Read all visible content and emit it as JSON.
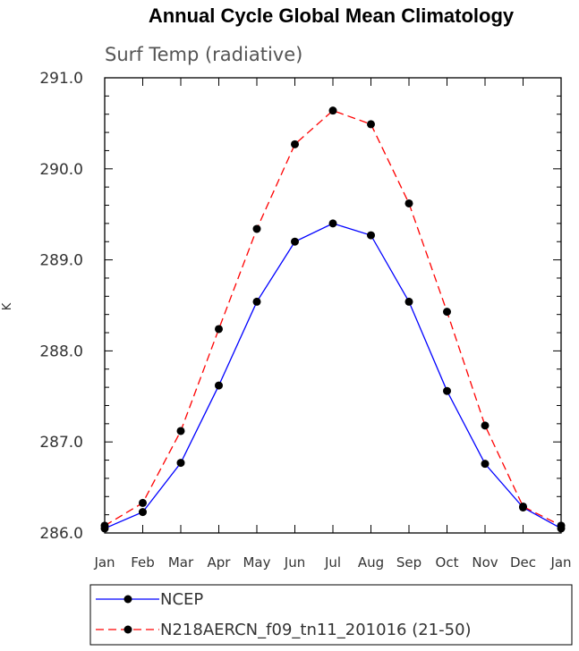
{
  "chart_data": {
    "type": "line",
    "title": "Annual Cycle Global Mean Climatology",
    "subtitle": "Surf Temp (radiative)",
    "xlabel": "",
    "ylabel": "K",
    "categories": [
      "Jan",
      "Feb",
      "Mar",
      "Apr",
      "May",
      "Jun",
      "Jul",
      "Aug",
      "Sep",
      "Oct",
      "Nov",
      "Dec",
      "Jan"
    ],
    "ylim": [
      286.0,
      291.0
    ],
    "yticks": [
      286.0,
      287.0,
      288.0,
      289.0,
      290.0,
      291.0
    ],
    "ytick_labels": [
      "286.0",
      "287.0",
      "288.0",
      "289.0",
      "290.0",
      "291.0"
    ],
    "grid": false,
    "legend_position": "bottom",
    "series": [
      {
        "name": "NCEP",
        "color": "#0000ff",
        "style": "solid",
        "values": [
          286.05,
          286.23,
          286.77,
          287.62,
          288.54,
          289.2,
          289.4,
          289.27,
          288.54,
          287.56,
          286.76,
          286.28,
          286.05
        ]
      },
      {
        "name": "N218AERCN_f09_tn11_201016 (21-50)",
        "color": "#ff0000",
        "style": "dashed",
        "values": [
          286.08,
          286.33,
          287.12,
          288.24,
          289.34,
          290.27,
          290.64,
          290.49,
          289.62,
          288.43,
          287.18,
          286.29,
          286.08
        ]
      }
    ]
  }
}
